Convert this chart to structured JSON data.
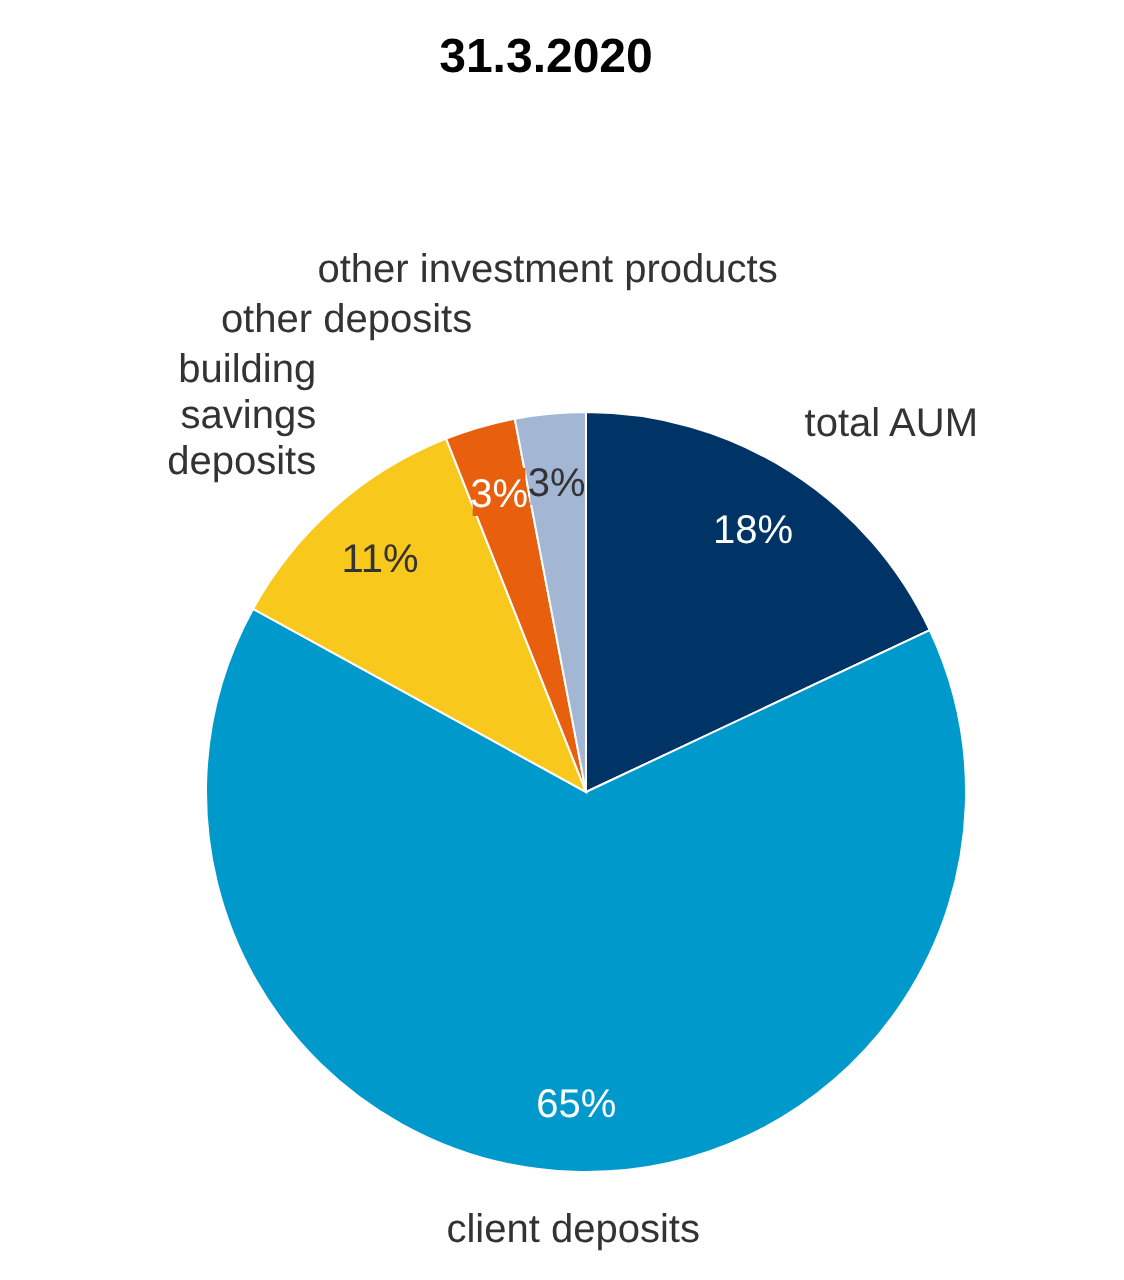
{
  "chart_data": {
    "type": "pie",
    "title": "31.3.2020",
    "categories": [
      "total AUM",
      "client deposits",
      "building savings deposits",
      "other deposits",
      "other investment products"
    ],
    "values": [
      18,
      65,
      11,
      3,
      3
    ],
    "colors": [
      "#003366",
      "#0099cc",
      "#f8c81c",
      "#e8600e",
      "#a3b6d4"
    ],
    "value_labels": [
      "18%",
      "65%",
      "11%",
      "3%",
      "3%"
    ]
  }
}
